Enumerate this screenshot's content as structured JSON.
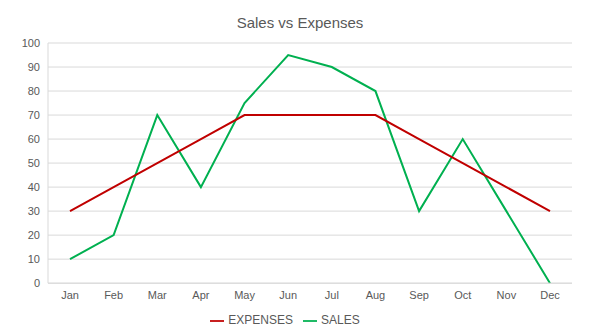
{
  "chart_data": {
    "type": "line",
    "title": "Sales vs Expenses",
    "categories": [
      "Jan",
      "Feb",
      "Mar",
      "Apr",
      "May",
      "Jun",
      "Jul",
      "Aug",
      "Sep",
      "Oct",
      "Nov",
      "Dec"
    ],
    "series": [
      {
        "name": "SALES",
        "color": "#00b050",
        "values": [
          10,
          20,
          70,
          40,
          75,
          95,
          90,
          80,
          30,
          60,
          30,
          0
        ]
      },
      {
        "name": "EXPENSES",
        "color": "#c00000",
        "values": [
          30,
          40,
          50,
          60,
          70,
          70,
          70,
          70,
          60,
          50,
          40,
          30
        ]
      }
    ],
    "ylim": [
      0,
      100
    ],
    "yticks": [
      0,
      10,
      20,
      30,
      40,
      50,
      60,
      70,
      80,
      90,
      100
    ],
    "grid": true,
    "legend": "bottom"
  }
}
